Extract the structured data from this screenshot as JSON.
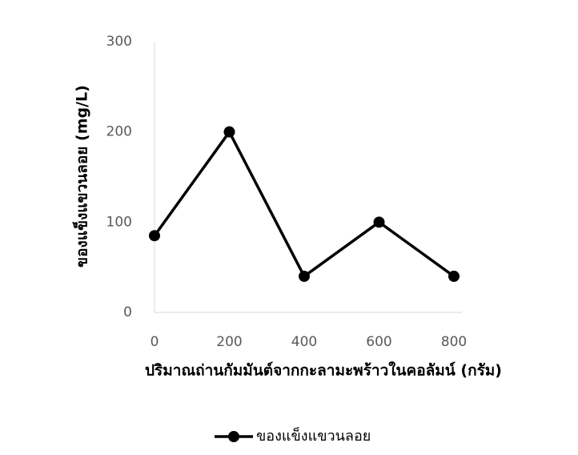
{
  "chart_data": {
    "type": "line",
    "x_label": "ปริมาณถ่านกัมมันต์จากกะลามะพร้าวในคอลัมน์ (กรัม)",
    "y_label": "ของแข็งแขวนลอย (mg/L)",
    "x": [
      0,
      200,
      400,
      600,
      800
    ],
    "series": [
      {
        "name": "ของแข็งแขวนลอย",
        "color": "#000000",
        "values": [
          85,
          200,
          40,
          100,
          40
        ]
      }
    ],
    "xlim": [
      0,
      800
    ],
    "xticks": [
      0,
      200,
      400,
      600,
      800
    ],
    "ylim": [
      0,
      300
    ],
    "yticks": [
      0,
      100,
      200,
      300
    ],
    "grid": false,
    "legend": "bottom"
  }
}
